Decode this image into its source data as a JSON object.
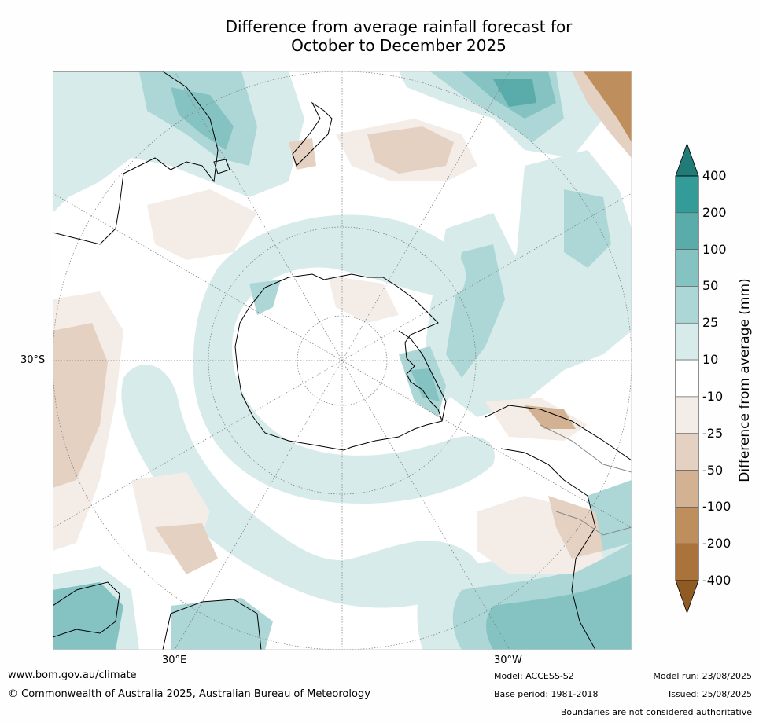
{
  "title_line1": "Difference from average rainfall forecast for",
  "title_line2": "October to December 2025",
  "map": {
    "projection": "south polar stereographic",
    "graticule_labels": {
      "lat_left": "30°S",
      "lon_bottom_left": "30°E",
      "lon_bottom_right": "30°W"
    },
    "landmasses_depicted": [
      "Antarctica",
      "Australia",
      "New Zealand",
      "South America",
      "Southern Africa",
      "Madagascar"
    ]
  },
  "colorbar": {
    "title": "Difference from average (mm)",
    "tick_labels": [
      "400",
      "200",
      "100",
      "50",
      "25",
      "10",
      "-10",
      "-25",
      "-50",
      "-100",
      "-200",
      "-400"
    ],
    "bins": [
      {
        "range": ">400",
        "color": "#217b77"
      },
      {
        "range": "200 to 400",
        "color": "#339b98"
      },
      {
        "range": "100 to 200",
        "color": "#5aacab"
      },
      {
        "range": "50 to 100",
        "color": "#84c3c2"
      },
      {
        "range": "25 to 50",
        "color": "#acd7d6"
      },
      {
        "range": "10 to 25",
        "color": "#d6ebea"
      },
      {
        "range": "-10 to 10",
        "color": "#ffffff"
      },
      {
        "range": "-25 to -10",
        "color": "#f4ece6"
      },
      {
        "range": "-50 to -25",
        "color": "#e4d1c1"
      },
      {
        "range": "-100 to -50",
        "color": "#d2b293"
      },
      {
        "range": "-200 to -100",
        "color": "#be8e5c"
      },
      {
        "range": "-400 to -200",
        "color": "#ab733c"
      },
      {
        "range": "<-400",
        "color": "#905b23"
      }
    ]
  },
  "footer": {
    "url": "www.bom.gov.au/climate",
    "copyright": "© Commonwealth of Australia 2025, Australian Bureau of Meteorology",
    "model": "Model: ACCESS-S2",
    "base_period": "Base period: 1981-2018",
    "model_run": "Model run: 23/08/2025",
    "issued": "Issued: 25/08/2025",
    "disclaimer": "Boundaries are not considered authoritative"
  }
}
